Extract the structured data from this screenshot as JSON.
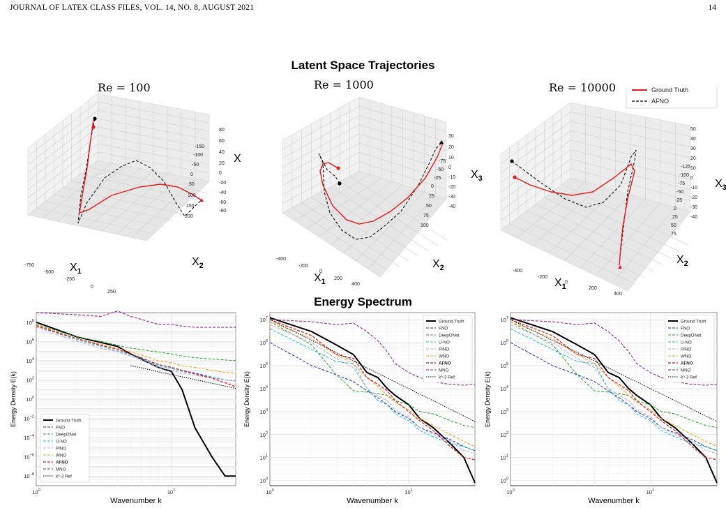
{
  "header": {
    "left": "JOURNAL OF LATEX CLASS FILES, VOL. 14, NO. 8, AUGUST 2021",
    "page": "14"
  },
  "top_section_title": "Latent Space Trajectories",
  "bottom_section_title": "Energy Spectrum",
  "legend3d": [
    {
      "name": "Ground Truth",
      "color": "#e31a1c",
      "style": "solid"
    },
    {
      "name": "AFNO",
      "color": "#000000",
      "style": "dashed"
    }
  ],
  "panels3d": [
    {
      "title": "Re = 100",
      "xlabel": "X",
      "xsub": "1",
      "ylabel": "X",
      "ysub": "2",
      "zlabel": "X",
      "zsub": "3",
      "xticks": [
        "-750",
        "-500",
        "-250",
        "0",
        "250",
        "500",
        "750",
        "1000"
      ],
      "yticks": [
        "200",
        "150",
        "100",
        "50",
        "0",
        "-50",
        "-100",
        "-150"
      ],
      "zticks": [
        "80",
        "60",
        "40",
        "20",
        "0",
        "-20",
        "-40",
        "-60",
        "-80"
      ]
    },
    {
      "title": "Re = 1000",
      "xlabel": "X",
      "xsub": "1",
      "ylabel": "X",
      "ysub": "2",
      "zlabel": "X",
      "zsub": "3",
      "xticks": [
        "-400",
        "-200",
        "0",
        "200",
        "400"
      ],
      "yticks": [
        "100",
        "75",
        "50",
        "25",
        "0",
        "-25",
        "-50",
        "-75"
      ],
      "zticks": [
        "30",
        "20",
        "10",
        "0",
        "-10",
        "-20",
        "-30",
        "-40"
      ]
    },
    {
      "title": "Re = 10000",
      "xlabel": "X",
      "xsub": "1",
      "ylabel": "X",
      "ysub": "2",
      "zlabel": "X",
      "zsub": "3",
      "xticks": [
        "-400",
        "-200",
        "0",
        "200",
        "400"
      ],
      "yticks": [
        "75",
        "50",
        "25",
        "0",
        "-25",
        "-50",
        "-75",
        "-100",
        "-125"
      ],
      "zticks": [
        "50",
        "40",
        "30",
        "20",
        "10",
        "0",
        "-10",
        "-20",
        "-30",
        "-40"
      ]
    }
  ],
  "spectrum_legend": [
    {
      "name": "Ground Truth",
      "color": "#000000",
      "dash": "",
      "width": 2
    },
    {
      "name": "FNO",
      "color": "#1f2fbf",
      "dash": "4,2",
      "width": 1
    },
    {
      "name": "DeepONet",
      "color": "#2ca02c",
      "dash": "4,2",
      "width": 1
    },
    {
      "name": "U-NO",
      "color": "#17becf",
      "dash": "4,2",
      "width": 1
    },
    {
      "name": "PINO",
      "color": "#c5a3e0",
      "dash": "4,2",
      "width": 1
    },
    {
      "name": "WNO",
      "color": "#ff9f1c",
      "dash": "4,2",
      "width": 1
    },
    {
      "name": "AFNO",
      "color": "#e31a1c",
      "dash": "4,2",
      "width": 1.2,
      "bold": true
    },
    {
      "name": "MNO",
      "color": "#8b1a8b",
      "dash": "4,2",
      "width": 1
    },
    {
      "name": "k^-3 Ref",
      "color": "#000000",
      "dash": "1.5,1.5",
      "width": 1
    }
  ],
  "chart_data": [
    {
      "type": "line",
      "title": "",
      "xlabel": "Wavenumber k",
      "ylabel": "Energy Density E(k)",
      "xscale": "log",
      "yscale": "log",
      "xlim": [
        1,
        30
      ],
      "ylim": [
        1e-09,
        1000000000.0
      ],
      "yticks": [
        "10^8",
        "10^6",
        "10^4",
        "10^2",
        "10^0",
        "10^-2",
        "10^-4",
        "10^-6",
        "10^-8"
      ],
      "xticks": [
        "10^0",
        "10^1"
      ],
      "legend_loc": "lower left",
      "x": [
        1,
        2,
        3,
        4,
        5,
        6,
        7,
        8,
        10,
        12,
        15,
        20,
        25,
        30
      ],
      "series": [
        {
          "name": "Ground Truth",
          "values": [
            100000000.0,
            3000000.0,
            800000.0,
            300000.0,
            50000.0,
            15000.0,
            5000.0,
            2000.0,
            800.0,
            10.0,
            0.001,
            1e-06,
            1e-08,
            1e-08
          ]
        },
        {
          "name": "FNO",
          "values": [
            50000000.0,
            2000000.0,
            400000.0,
            150000.0,
            50000.0,
            20000.0,
            8000.0,
            4000.0,
            2000.0,
            1000.0,
            500.0,
            200.0,
            100.0,
            80.0
          ]
        },
        {
          "name": "DeepONet",
          "values": [
            60000000.0,
            3000000.0,
            1000000.0,
            400000.0,
            200000.0,
            150000.0,
            100000.0,
            80000.0,
            50000.0,
            30000.0,
            20000.0,
            15000.0,
            12000.0,
            10000.0
          ]
        },
        {
          "name": "U-NO",
          "values": [
            40000000.0,
            1500000.0,
            300000.0,
            100000.0,
            40000.0,
            15000.0,
            6000.0,
            3000.0,
            1500.0,
            800.0,
            400.0,
            200.0,
            100.0,
            80.0
          ]
        },
        {
          "name": "PINO",
          "values": [
            30000000.0,
            1000000.0,
            200000.0,
            80000.0,
            30000.0,
            10000.0,
            5000.0,
            2000.0,
            1000.0,
            500.0,
            300.0,
            150.0,
            100.0,
            80.0
          ]
        },
        {
          "name": "WNO",
          "values": [
            50000000.0,
            2000000.0,
            500000.0,
            200000.0,
            80000.0,
            40000.0,
            20000.0,
            10000.0,
            6000.0,
            3000.0,
            2000.0,
            1000.0,
            600.0,
            500.0
          ]
        },
        {
          "name": "AFNO",
          "values": [
            40000000.0,
            2000000.0,
            400000.0,
            150000.0,
            50000.0,
            20000.0,
            8000.0,
            4000.0,
            2000.0,
            1000.0,
            400.0,
            150.0,
            50.0,
            20.0
          ]
        },
        {
          "name": "MNO",
          "values": [
            1000000000.0,
            600000000.0,
            400000000.0,
            1500000000.0,
            400000000.0,
            200000000.0,
            100000000.0,
            60000000.0,
            60000000.0,
            40000000.0,
            30000000.0,
            30000000.0,
            30000000.0,
            30000000.0
          ]
        },
        {
          "name": "k^-3 Ref",
          "values": [
            null,
            null,
            null,
            null,
            3000.0,
            1800.0,
            1100.0,
            700.0,
            360.0,
            210.0,
            110.0,
            45.0,
            23.0,
            13.0
          ]
        }
      ]
    },
    {
      "type": "line",
      "title": "",
      "xlabel": "Wavenumber k",
      "ylabel": "Energy Density E(k)",
      "xscale": "log",
      "yscale": "log",
      "xlim": [
        1,
        30
      ],
      "ylim": [
        0.6,
        20000000.0
      ],
      "yticks": [
        "10^7",
        "10^6",
        "10^5",
        "10^4",
        "10^3",
        "10^2",
        "10^1",
        "10^0"
      ],
      "xticks": [
        "10^0",
        "10^1"
      ],
      "legend_loc": "upper right",
      "x": [
        1,
        2,
        3,
        4,
        5,
        6,
        7,
        8,
        10,
        12,
        15,
        20,
        25,
        30
      ],
      "series": [
        {
          "name": "Ground Truth",
          "values": [
            12000000.0,
            3000000.0,
            800000.0,
            300000.0,
            50000.0,
            30000.0,
            10000.0,
            5000.0,
            2000.0,
            500.0,
            200.0,
            40.0,
            10.0,
            0.8
          ]
        },
        {
          "name": "FNO",
          "values": [
            1000000.0,
            100000.0,
            40000.0,
            20000.0,
            8000.0,
            4000.0,
            2000.0,
            1000.0,
            500.0,
            200.0,
            120.0,
            60.0,
            30.0,
            20.0
          ]
        },
        {
          "name": "DeepONet",
          "values": [
            8000000.0,
            800000.0,
            40000.0,
            8000.0,
            7000.0,
            6000.0,
            5000.0,
            3000.0,
            2000.0,
            1000.0,
            800.0,
            400.0,
            250.0,
            200.0
          ]
        },
        {
          "name": "U-NO",
          "values": [
            4000000.0,
            500000.0,
            150000.0,
            120000.0,
            10000.0,
            3000.0,
            2000.0,
            800.0,
            400.0,
            150.0,
            80.0,
            40.0,
            30.0,
            20.0
          ]
        },
        {
          "name": "PINO",
          "values": [
            6000000.0,
            1000000.0,
            200000.0,
            80000.0,
            10000.0,
            5000.0,
            3000.0,
            1200.0,
            600.0,
            200.0,
            100.0,
            50.0,
            20.0,
            15.0
          ]
        },
        {
          "name": "WNO",
          "values": [
            8000000.0,
            1500000.0,
            300000.0,
            120000.0,
            30000.0,
            12000.0,
            5000.0,
            2500.0,
            1200.0,
            500.0,
            250.0,
            100.0,
            50.0,
            30.0
          ]
        },
        {
          "name": "AFNO",
          "values": [
            10000000.0,
            2000000.0,
            300000.0,
            200000.0,
            30000.0,
            15000.0,
            8000.0,
            3000.0,
            1000.0,
            400.0,
            150.0,
            30.0,
            10.0,
            8
          ]
        },
        {
          "name": "MNO",
          "values": [
            10000000.0,
            8000000.0,
            6000000.0,
            7000000.0,
            3000000.0,
            1200000.0,
            400000.0,
            120000.0,
            50000.0,
            30000.0,
            20000.0,
            15000.0,
            14000.0,
            15000.0
          ]
        },
        {
          "name": "k^-3 Ref",
          "values": [
            10000000.0,
            1250000.0,
            370000.0,
            156000.0,
            80000.0,
            46000.0,
            29000.0,
            19500.0,
            10000.0,
            5800.0,
            3000.0,
            1250.0,
            640.0,
            370.0
          ]
        }
      ]
    },
    {
      "type": "line",
      "title": "",
      "xlabel": "Wavenumber k",
      "ylabel": "Energy Density E(k)",
      "xscale": "log",
      "yscale": "log",
      "xlim": [
        1,
        30
      ],
      "ylim": [
        0.6,
        20000000.0
      ],
      "yticks": [
        "10^7",
        "10^6",
        "10^5",
        "10^4",
        "10^3",
        "10^2",
        "10^1",
        "10^0"
      ],
      "xticks": [
        "10^0",
        "10^1"
      ],
      "legend_loc": "upper right",
      "x": [
        1,
        2,
        3,
        4,
        5,
        6,
        7,
        8,
        10,
        12,
        15,
        20,
        25,
        30
      ],
      "series": [
        {
          "name": "Ground Truth",
          "values": [
            12000000.0,
            3000000.0,
            800000.0,
            300000.0,
            50000.0,
            30000.0,
            10000.0,
            5000.0,
            2000.0,
            500.0,
            200.0,
            40.0,
            10.0,
            0.8
          ]
        },
        {
          "name": "FNO",
          "values": [
            1000000.0,
            100000.0,
            40000.0,
            20000.0,
            8000.0,
            4000.0,
            2000.0,
            1000.0,
            500.0,
            200.0,
            120.0,
            60.0,
            30.0,
            20.0
          ]
        },
        {
          "name": "DeepONet",
          "values": [
            8000000.0,
            800000.0,
            40000.0,
            8000.0,
            7000.0,
            6000.0,
            5000.0,
            3000.0,
            2000.0,
            1000.0,
            800.0,
            400.0,
            250.0,
            200.0
          ]
        },
        {
          "name": "U-NO",
          "values": [
            4000000.0,
            500000.0,
            150000.0,
            120000.0,
            10000.0,
            3000.0,
            2000.0,
            800.0,
            400.0,
            150.0,
            80.0,
            40.0,
            30.0,
            20.0
          ]
        },
        {
          "name": "PINO",
          "values": [
            6000000.0,
            1000000.0,
            200000.0,
            80000.0,
            10000.0,
            5000.0,
            3000.0,
            1200.0,
            600.0,
            200.0,
            100.0,
            50.0,
            20.0,
            15.0
          ]
        },
        {
          "name": "WNO",
          "values": [
            8000000.0,
            1500000.0,
            300000.0,
            120000.0,
            30000.0,
            12000.0,
            5000.0,
            2500.0,
            1200.0,
            500.0,
            250.0,
            100.0,
            50.0,
            30.0
          ]
        },
        {
          "name": "AFNO",
          "values": [
            10000000.0,
            2000000.0,
            300000.0,
            200000.0,
            30000.0,
            15000.0,
            8000.0,
            3000.0,
            1000.0,
            400.0,
            150.0,
            30.0,
            10.0,
            8
          ]
        },
        {
          "name": "MNO",
          "values": [
            10000000.0,
            8000000.0,
            6000000.0,
            7000000.0,
            3000000.0,
            1200000.0,
            400000.0,
            120000.0,
            50000.0,
            30000.0,
            20000.0,
            15000.0,
            14000.0,
            15000.0
          ]
        },
        {
          "name": "k^-3 Ref",
          "values": [
            10000000.0,
            1250000.0,
            370000.0,
            156000.0,
            80000.0,
            46000.0,
            29000.0,
            19500.0,
            10000.0,
            5800.0,
            3000.0,
            1250.0,
            640.0,
            370.0
          ]
        }
      ]
    }
  ]
}
